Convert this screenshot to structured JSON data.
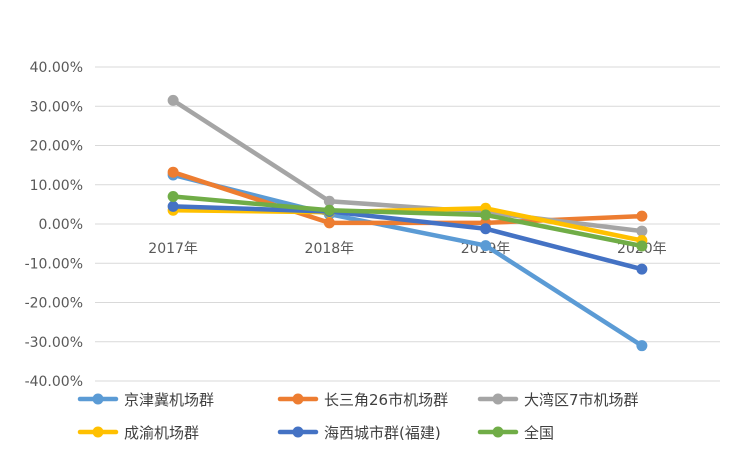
{
  "chart_data": {
    "type": "line",
    "title": "",
    "xlabel": "",
    "ylabel": "",
    "categories": [
      "2017年",
      "2018年",
      "2019年",
      "2020年"
    ],
    "y_unit": "percent",
    "ylim": [
      -40,
      40
    ],
    "y_ticks": [
      40,
      30,
      20,
      10,
      0,
      -10,
      -20,
      -30,
      -40
    ],
    "y_tick_labels": [
      "40.00%",
      "30.00%",
      "20.00%",
      "10.00%",
      "0.00%",
      "-10.00%",
      "-20.00%",
      "-30.00%",
      "-40.00%"
    ],
    "grid": "horizontal",
    "legend_position": "bottom",
    "series": [
      {
        "name": "京津冀机场群",
        "color": "#5B9BD5",
        "values": [
          12.5,
          2.5,
          -5.5,
          -31
        ]
      },
      {
        "name": "长三角26市机场群",
        "color": "#ED7D31",
        "values": [
          13.2,
          0.3,
          0.3,
          2.0
        ]
      },
      {
        "name": "大湾区7市机场群",
        "color": "#A5A5A5",
        "values": [
          31.5,
          5.8,
          3.0,
          -1.8
        ]
      },
      {
        "name": "成渝机场群",
        "color": "#FFC000",
        "values": [
          3.5,
          3.0,
          4.0,
          -4.2
        ]
      },
      {
        "name": "海西城市群(福建)",
        "color": "#4472C4",
        "values": [
          4.5,
          3.2,
          -1.2,
          -11.5
        ]
      },
      {
        "name": "全国",
        "color": "#70AD47",
        "values": [
          7.0,
          3.5,
          2.3,
          -5.6
        ]
      }
    ]
  }
}
